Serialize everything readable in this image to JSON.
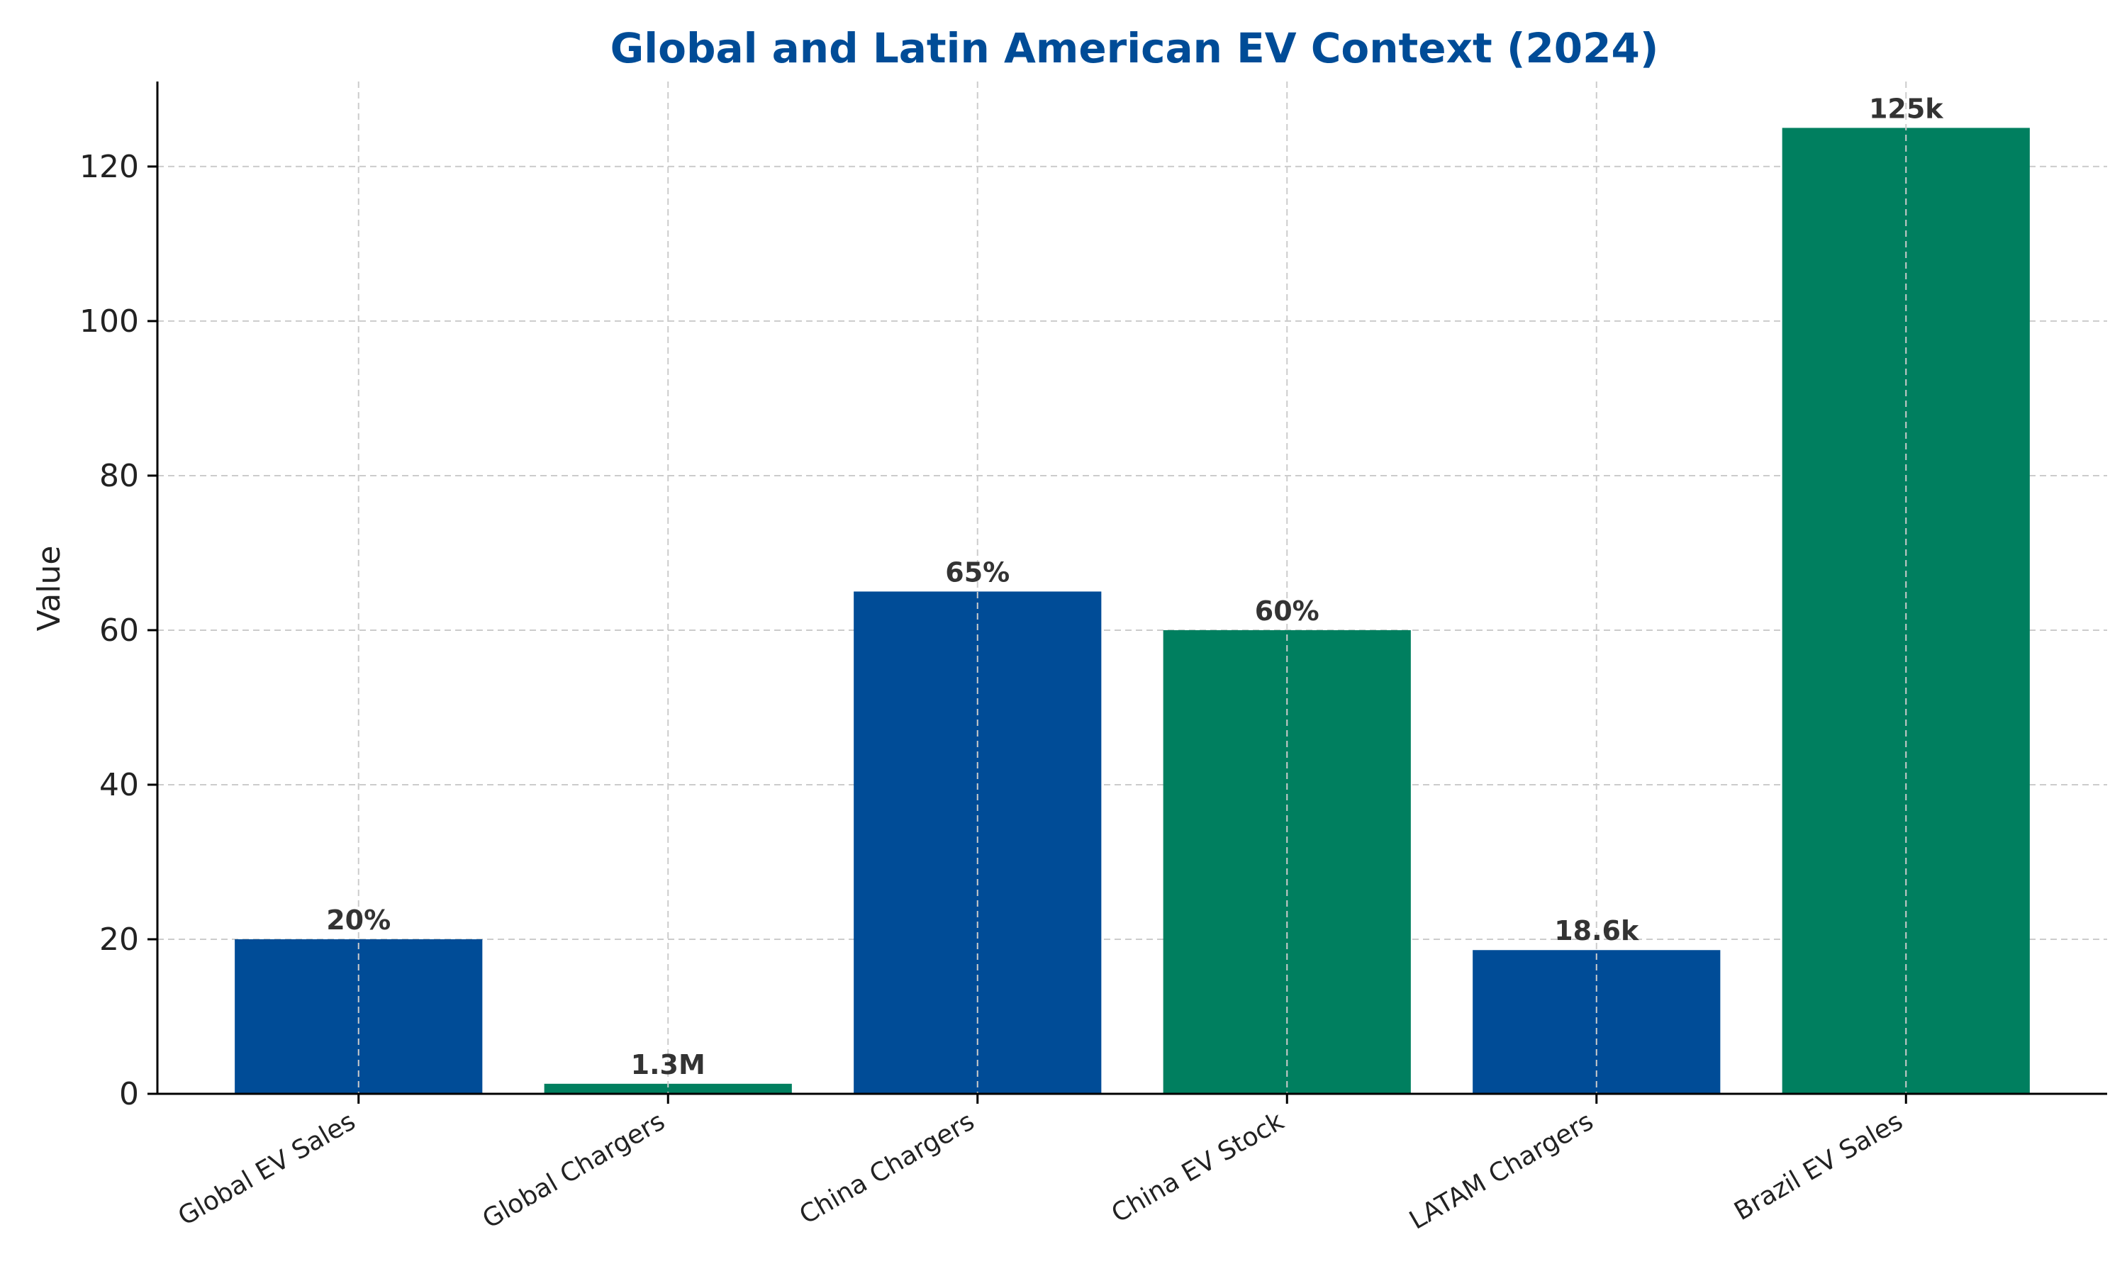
{
  "chart_data": {
    "type": "bar",
    "title": "Global and Latin American EV Context (2024)",
    "xlabel": "",
    "ylabel": "Value",
    "categories": [
      "Global EV Sales",
      "Global Chargers",
      "China Chargers",
      "China EV Stock",
      "LATAM Chargers",
      "Brazil EV Sales"
    ],
    "values": [
      20,
      1.3,
      65,
      60,
      18.6,
      125
    ],
    "data_labels": [
      "20%",
      "1.3M",
      "65%",
      "60%",
      "18.6k",
      "125k"
    ],
    "bar_colors": [
      "#004c97",
      "#007f5f",
      "#004c97",
      "#007f5f",
      "#004c97",
      "#007f5f"
    ],
    "ylim": [
      0,
      131
    ],
    "yticks": [
      0,
      20,
      40,
      60,
      80,
      100,
      120
    ],
    "grid": true,
    "legend": false
  },
  "colors": {
    "title": "#004c97",
    "blue": "#004c97",
    "green": "#007f5f",
    "grid": "#cccccc"
  }
}
